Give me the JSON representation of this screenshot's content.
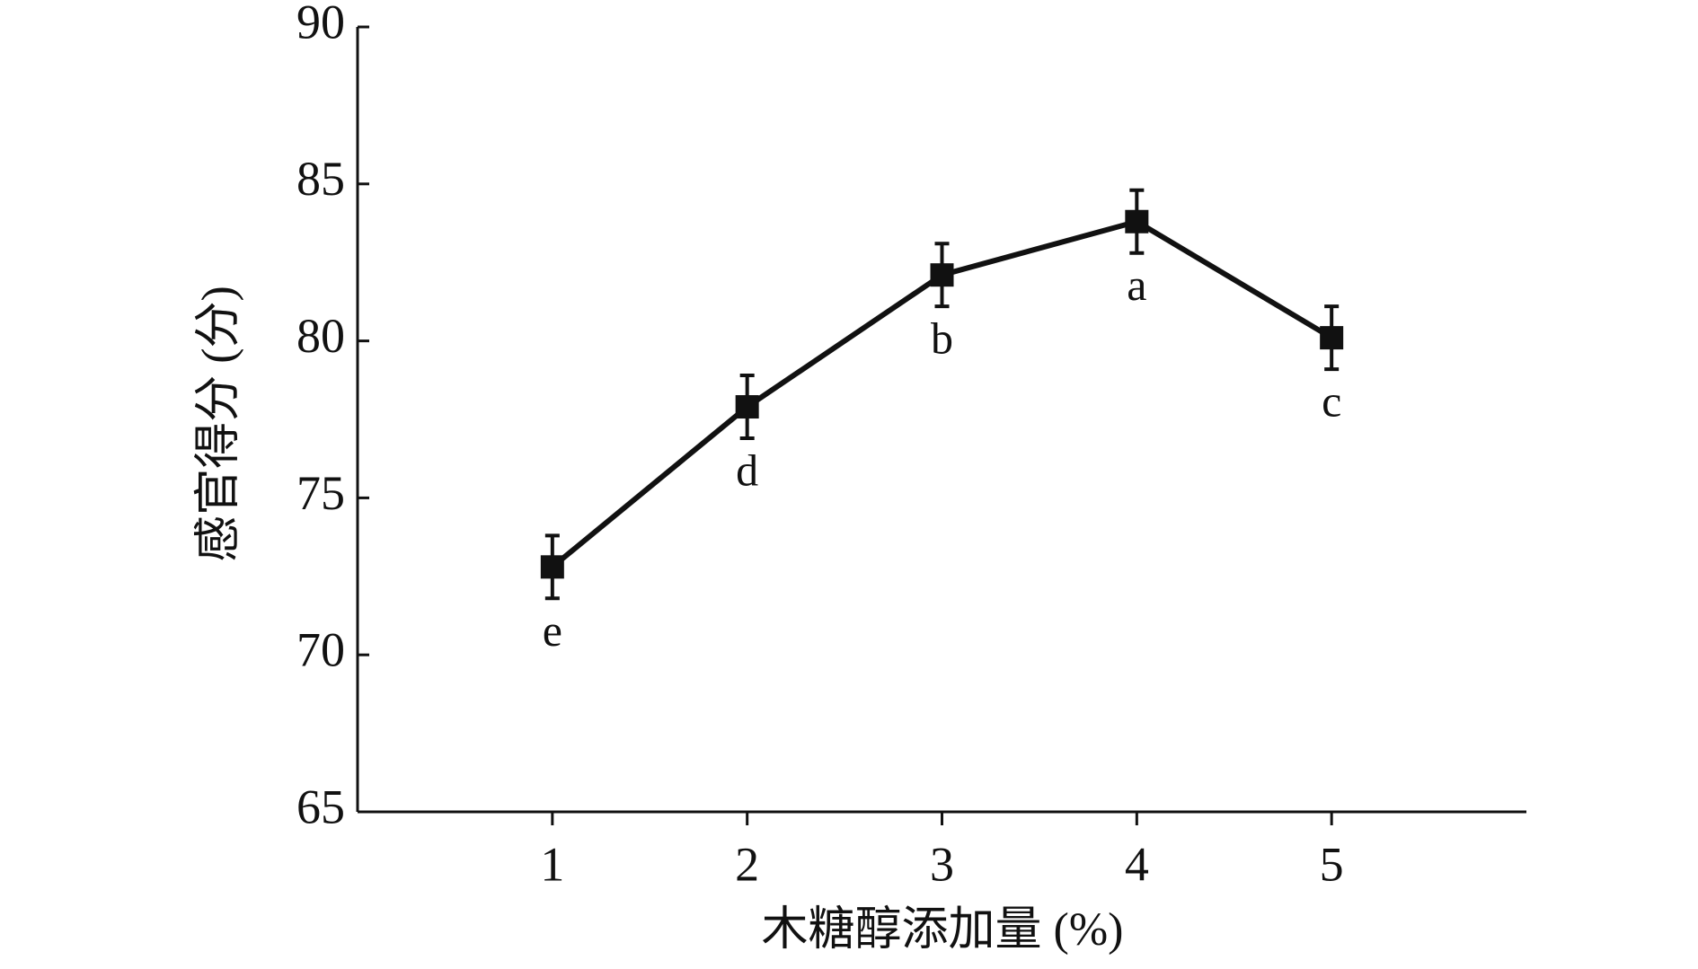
{
  "chart_data": {
    "type": "line",
    "xlabel": "木糖醇添加量 (%)",
    "ylabel": "感官得分 (分)",
    "x": [
      1,
      2,
      3,
      4,
      5
    ],
    "values": [
      72.8,
      77.9,
      82.1,
      83.8,
      80.1
    ],
    "errors": [
      1.0,
      1.0,
      1.0,
      1.0,
      1.0
    ],
    "annotations": [
      "e",
      "d",
      "b",
      "a",
      "c"
    ],
    "color": "#111111",
    "xlim": [
      0,
      6
    ],
    "xticks": [
      1,
      2,
      3,
      4,
      5
    ],
    "ylim": [
      65,
      90
    ],
    "yticks": [
      65,
      70,
      75,
      80,
      85,
      90
    ]
  }
}
